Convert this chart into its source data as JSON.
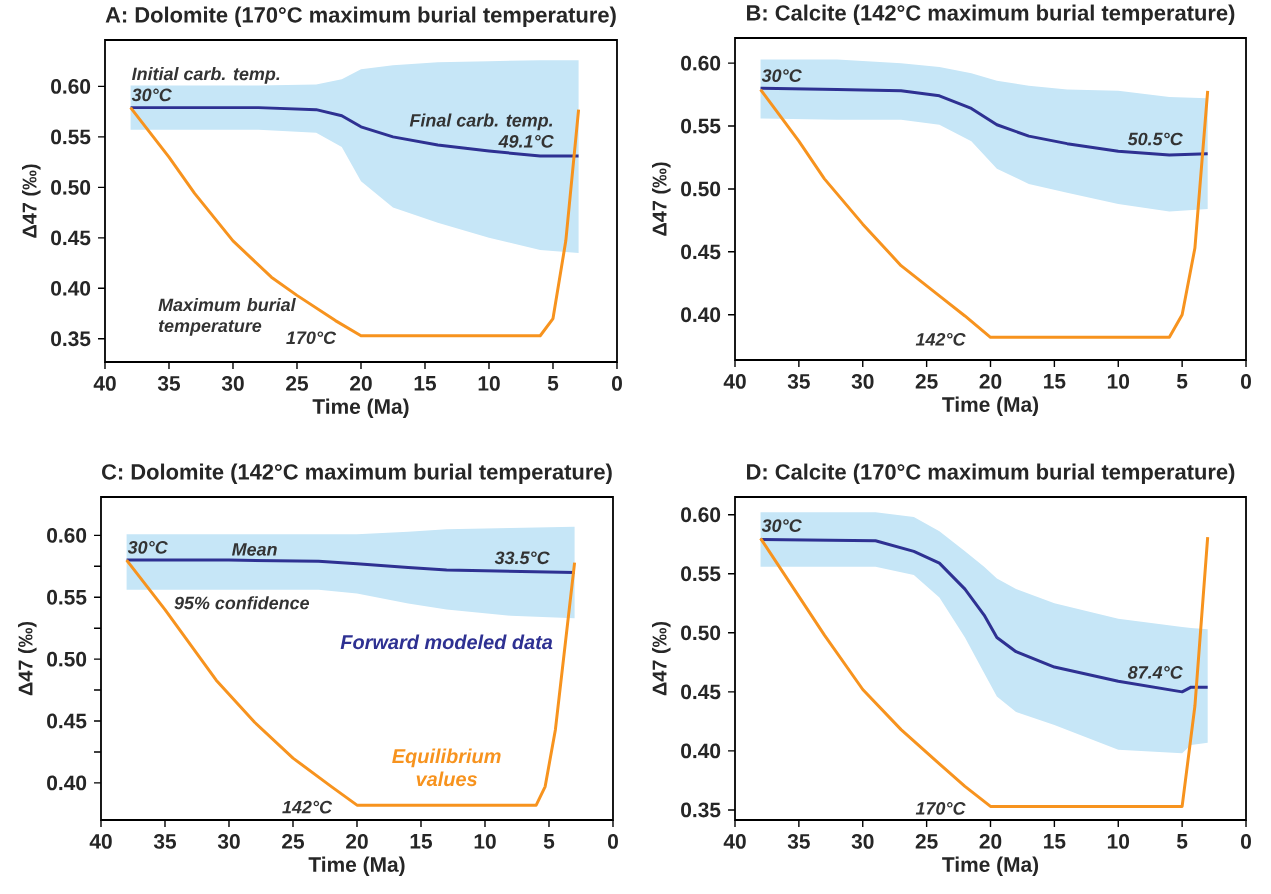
{
  "chart_data": [
    {
      "type": "line",
      "title": "A: Dolomite (170°C maximum burial temperature)",
      "xlabel": "Time (Ma)",
      "ylabel": "Δ47 (‰)",
      "marker": "none",
      "xlim": [
        40,
        0
      ],
      "xticks": [
        40,
        35,
        30,
        25,
        20,
        15,
        10,
        5,
        0
      ],
      "ylim": [
        0.327,
        0.646
      ],
      "yticks": [
        {
          "value": 0.35,
          "label": "0.35"
        },
        {
          "value": 0.4,
          "label": "0.40"
        },
        {
          "value": 0.45,
          "label": "0.45"
        },
        {
          "value": 0.5,
          "label": "0.50"
        },
        {
          "value": 0.55,
          "label": "0.55"
        },
        {
          "value": 0.6,
          "label": "0.60"
        }
      ],
      "series": [
        {
          "color": "#2e3192",
          "x": [
            38,
            33,
            28,
            23.5,
            21.5,
            20,
            17.5,
            14,
            10,
            6,
            3
          ],
          "values": [
            0.579,
            0.579,
            0.579,
            0.577,
            0.571,
            0.56,
            0.55,
            0.542,
            0.536,
            0.531,
            0.531
          ],
          "upper": [
            0.601,
            0.601,
            0.601,
            0.602,
            0.607,
            0.617,
            0.621,
            0.624,
            0.625,
            0.626,
            0.626
          ],
          "lower": [
            0.557,
            0.557,
            0.557,
            0.554,
            0.54,
            0.506,
            0.48,
            0.465,
            0.45,
            0.438,
            0.435
          ]
        },
        {
          "color": "#f7931e",
          "x": [
            38,
            35,
            33,
            30,
            27,
            25,
            22,
            20,
            6,
            5,
            4,
            3
          ],
          "values": [
            0.579,
            0.53,
            0.494,
            0.447,
            0.411,
            0.393,
            0.368,
            0.353,
            0.353,
            0.37,
            0.447,
            0.577
          ]
        }
      ],
      "annotations": [
        {
          "text": "30°C",
          "x": 38,
          "y": 0.579
        },
        {
          "text": "Initial carb. temp.",
          "x": 38,
          "y": 0.579
        },
        {
          "text": "49.1°C",
          "x": 3,
          "y": 0.531
        },
        {
          "text": "Final carb. temp.",
          "x": 3,
          "y": 0.531
        },
        {
          "text": "170°C",
          "x": 20,
          "y": 0.353
        },
        "Maximum burial temperature"
      ]
    },
    {
      "type": "line",
      "title": "B: Calcite (142°C maximum burial temperature)",
      "xlabel": "Time (Ma)",
      "ylabel": "Δ47 (‰)",
      "marker": "none",
      "xlim": [
        40,
        0
      ],
      "xticks": [
        40,
        35,
        30,
        25,
        20,
        15,
        10,
        5,
        0
      ],
      "ylim": [
        0.364,
        0.62
      ],
      "yticks": [
        {
          "value": 0.4,
          "label": "0.40"
        },
        {
          "value": 0.45,
          "label": "0.45"
        },
        {
          "value": 0.5,
          "label": "0.50"
        },
        {
          "value": 0.55,
          "label": "0.55"
        },
        {
          "value": 0.6,
          "label": "0.60"
        }
      ],
      "series": [
        {
          "color": "#2e3192",
          "x": [
            38,
            32,
            27,
            24,
            21.5,
            19.5,
            17,
            14,
            10,
            6,
            3
          ],
          "values": [
            0.58,
            0.579,
            0.578,
            0.574,
            0.564,
            0.551,
            0.542,
            0.536,
            0.53,
            0.527,
            0.528
          ],
          "upper": [
            0.603,
            0.603,
            0.6,
            0.597,
            0.592,
            0.586,
            0.582,
            0.579,
            0.578,
            0.573,
            0.572
          ],
          "lower": [
            0.556,
            0.555,
            0.555,
            0.551,
            0.538,
            0.516,
            0.504,
            0.497,
            0.488,
            0.482,
            0.484
          ]
        },
        {
          "color": "#f7931e",
          "x": [
            38,
            35,
            33,
            30,
            27,
            24,
            22,
            20,
            6,
            5,
            4,
            3
          ],
          "values": [
            0.579,
            0.538,
            0.508,
            0.472,
            0.439,
            0.415,
            0.399,
            0.382,
            0.382,
            0.4,
            0.453,
            0.578
          ]
        }
      ],
      "annotations": [
        {
          "text": "30°C",
          "x": 38,
          "y": 0.58
        },
        {
          "text": "50.5°C",
          "x": 3,
          "y": 0.528
        },
        {
          "text": "142°C",
          "x": 20,
          "y": 0.382
        }
      ]
    },
    {
      "type": "line",
      "title": "C: Dolomite (142°C maximum burial temperature)",
      "xlabel": "Time (Ma)",
      "ylabel": "Δ47 (‰)",
      "marker": "none",
      "xlim": [
        40,
        0
      ],
      "xticks": [
        40,
        35,
        30,
        25,
        20,
        15,
        10,
        5,
        0
      ],
      "ylim": [
        0.37,
        0.631
      ],
      "yticks": [
        {
          "value": 0.4,
          "label": "0.40"
        },
        {
          "value": 0.425,
          "label": null
        },
        {
          "value": 0.45,
          "label": "0.45"
        },
        {
          "value": 0.475,
          "label": null
        },
        {
          "value": 0.5,
          "label": "0.50"
        },
        {
          "value": 0.525,
          "label": null
        },
        {
          "value": 0.55,
          "label": "0.55"
        },
        {
          "value": 0.575,
          "label": null
        },
        {
          "value": 0.6,
          "label": "0.60"
        }
      ],
      "series": [
        {
          "name": "Forward modeled data",
          "color": "#2e3192",
          "x": [
            38,
            30,
            23,
            20,
            16,
            13,
            8,
            3
          ],
          "values": [
            0.58,
            0.58,
            0.579,
            0.577,
            0.574,
            0.572,
            0.571,
            0.57
          ],
          "upper": [
            0.601,
            0.601,
            0.601,
            0.601,
            0.603,
            0.605,
            0.606,
            0.607
          ],
          "lower": [
            0.556,
            0.556,
            0.556,
            0.553,
            0.545,
            0.54,
            0.535,
            0.533
          ]
        },
        {
          "name": "Equilibrium values",
          "color": "#f7931e",
          "x": [
            38,
            35,
            31,
            28,
            25,
            22,
            20,
            6,
            5.3,
            4.5,
            3
          ],
          "values": [
            0.58,
            0.54,
            0.483,
            0.449,
            0.42,
            0.397,
            0.382,
            0.382,
            0.397,
            0.443,
            0.578
          ]
        }
      ],
      "annotations": [
        {
          "text": "30°C",
          "x": 38,
          "y": 0.58
        },
        {
          "text": "Mean",
          "x": 28,
          "y": 0.58
        },
        {
          "text": "95% confidence",
          "x": 29,
          "y": 0.556
        },
        {
          "text": "33.5°C",
          "x": 3,
          "y": 0.57
        },
        {
          "text": "142°C",
          "x": 20,
          "y": 0.382
        }
      ]
    },
    {
      "type": "line",
      "title": "D: Calcite (170°C maximum burial temperature)",
      "xlabel": "Time (Ma)",
      "ylabel": "Δ47 (‰)",
      "marker": "none",
      "xlim": [
        40,
        0
      ],
      "xticks": [
        40,
        35,
        30,
        25,
        20,
        15,
        10,
        5,
        0
      ],
      "ylim": [
        0.3415,
        0.615
      ],
      "yticks": [
        {
          "value": 0.35,
          "label": "0.35"
        },
        {
          "value": 0.4,
          "label": "0.40"
        },
        {
          "value": 0.45,
          "label": "0.45"
        },
        {
          "value": 0.5,
          "label": "0.50"
        },
        {
          "value": 0.55,
          "label": "0.55"
        },
        {
          "value": 0.6,
          "label": "0.60"
        }
      ],
      "series": [
        {
          "color": "#2e3192",
          "x": [
            38,
            29,
            26,
            24,
            22,
            20.5,
            19.5,
            18,
            15,
            10,
            5,
            4.3,
            3
          ],
          "values": [
            0.579,
            0.578,
            0.569,
            0.559,
            0.537,
            0.515,
            0.496,
            0.484,
            0.471,
            0.459,
            0.45,
            0.454,
            0.454
          ],
          "upper": [
            0.602,
            0.602,
            0.598,
            0.586,
            0.569,
            0.556,
            0.546,
            0.537,
            0.525,
            0.512,
            0.505,
            0.504,
            0.503
          ],
          "lower": [
            0.556,
            0.556,
            0.549,
            0.53,
            0.496,
            0.466,
            0.446,
            0.433,
            0.422,
            0.401,
            0.398,
            0.405,
            0.407
          ]
        },
        {
          "color": "#f7931e",
          "x": [
            38,
            35.5,
            33,
            30,
            27,
            24,
            22,
            20,
            5,
            4,
            3
          ],
          "values": [
            0.58,
            0.539,
            0.498,
            0.452,
            0.418,
            0.389,
            0.37,
            0.353,
            0.353,
            0.438,
            0.581
          ]
        }
      ],
      "annotations": [
        {
          "text": "30°C",
          "x": 38,
          "y": 0.58
        },
        {
          "text": "87.4°C",
          "x": 3,
          "y": 0.454
        },
        {
          "text": "170°C",
          "x": 20,
          "y": 0.353
        }
      ]
    }
  ]
}
